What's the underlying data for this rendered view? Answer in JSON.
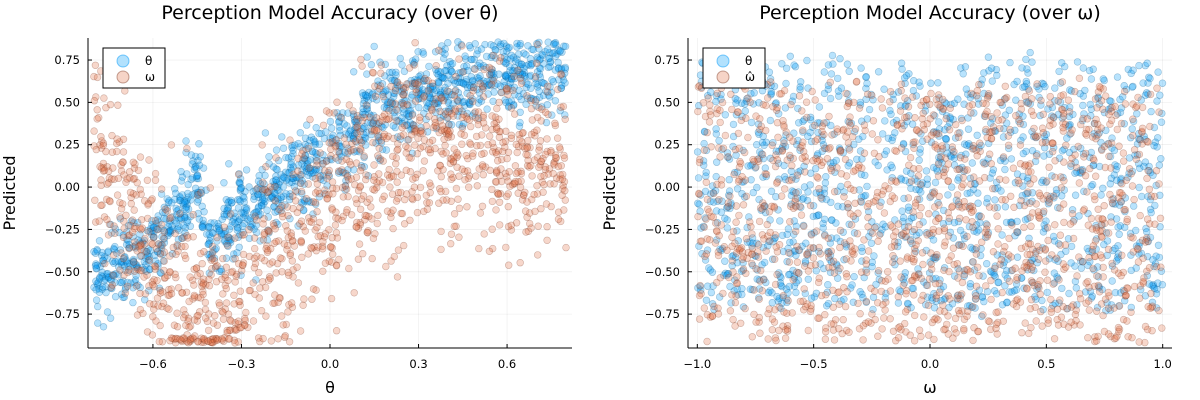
{
  "chart_data": [
    {
      "type": "scatter",
      "title": "Perception Model Accuracy (over θ)",
      "xlabel": "θ",
      "ylabel": "Predicted",
      "xlim": [
        -0.82,
        0.82
      ],
      "ylim": [
        -0.95,
        0.88
      ],
      "xticks": [
        -0.6,
        -0.3,
        0.0,
        0.3,
        0.6
      ],
      "xtick_labels": [
        "−0.6",
        "−0.3",
        "0.0",
        "0.3",
        "0.6"
      ],
      "yticks": [
        0.75,
        0.5,
        0.25,
        0.0,
        -0.25,
        -0.5,
        -0.75
      ],
      "ytick_labels": [
        "0.75",
        "0.50",
        "0.25",
        "0.00",
        "−0.25",
        "−0.50",
        "−0.75"
      ],
      "grid": true,
      "legend_position": "top-left",
      "series": [
        {
          "name": "θ",
          "color": "#009af9",
          "trend": [
            [
              -0.8,
              -0.5
            ],
            [
              -0.7,
              -0.48
            ],
            [
              -0.6,
              -0.35
            ],
            [
              -0.5,
              -0.1
            ],
            [
              -0.45,
              0.0
            ],
            [
              -0.4,
              -0.35
            ],
            [
              -0.3,
              -0.15
            ],
            [
              -0.15,
              0.05
            ],
            [
              0.0,
              0.2
            ],
            [
              0.15,
              0.45
            ],
            [
              0.3,
              0.55
            ],
            [
              0.45,
              0.62
            ],
            [
              0.6,
              0.66
            ],
            [
              0.78,
              0.68
            ]
          ],
          "spread": 0.12
        },
        {
          "name": "ω",
          "color": "#e26f46",
          "trend": [
            [
              -0.8,
              0.25
            ],
            [
              -0.7,
              -0.05
            ],
            [
              -0.6,
              -0.4
            ],
            [
              -0.5,
              -0.65
            ],
            [
              -0.4,
              -0.78
            ],
            [
              -0.3,
              -0.65
            ],
            [
              -0.15,
              -0.3
            ],
            [
              0.0,
              -0.05
            ],
            [
              0.15,
              0.15
            ],
            [
              0.3,
              0.25
            ],
            [
              0.45,
              0.25
            ],
            [
              0.6,
              0.2
            ],
            [
              0.78,
              0.15
            ]
          ],
          "spread": 0.28
        }
      ]
    },
    {
      "type": "scatter",
      "title": "Perception Model Accuracy (over ω)",
      "xlabel": "ω",
      "ylabel": "Predicted",
      "xlim": [
        -1.04,
        1.04
      ],
      "ylim": [
        -0.95,
        0.88
      ],
      "xticks": [
        -1.0,
        -0.5,
        0.0,
        0.5,
        1.0
      ],
      "xtick_labels": [
        "−1.0",
        "−0.5",
        "0.0",
        "0.5",
        "1.0"
      ],
      "yticks": [
        0.75,
        0.5,
        0.25,
        0.0,
        -0.25,
        -0.5,
        -0.75
      ],
      "ytick_labels": [
        "0.75",
        "0.50",
        "0.25",
        "0.00",
        "−0.25",
        "−0.50",
        "−0.75"
      ],
      "grid": true,
      "legend_position": "top-left",
      "series": [
        {
          "name": "θ",
          "color": "#009af9",
          "x_range": [
            -1.0,
            1.0
          ],
          "y_range": [
            -0.72,
            0.74
          ]
        },
        {
          "name": "ω̂",
          "color": "#e26f46",
          "x_range": [
            -1.0,
            1.0
          ],
          "y_range": [
            -0.9,
            0.6
          ]
        }
      ]
    }
  ]
}
